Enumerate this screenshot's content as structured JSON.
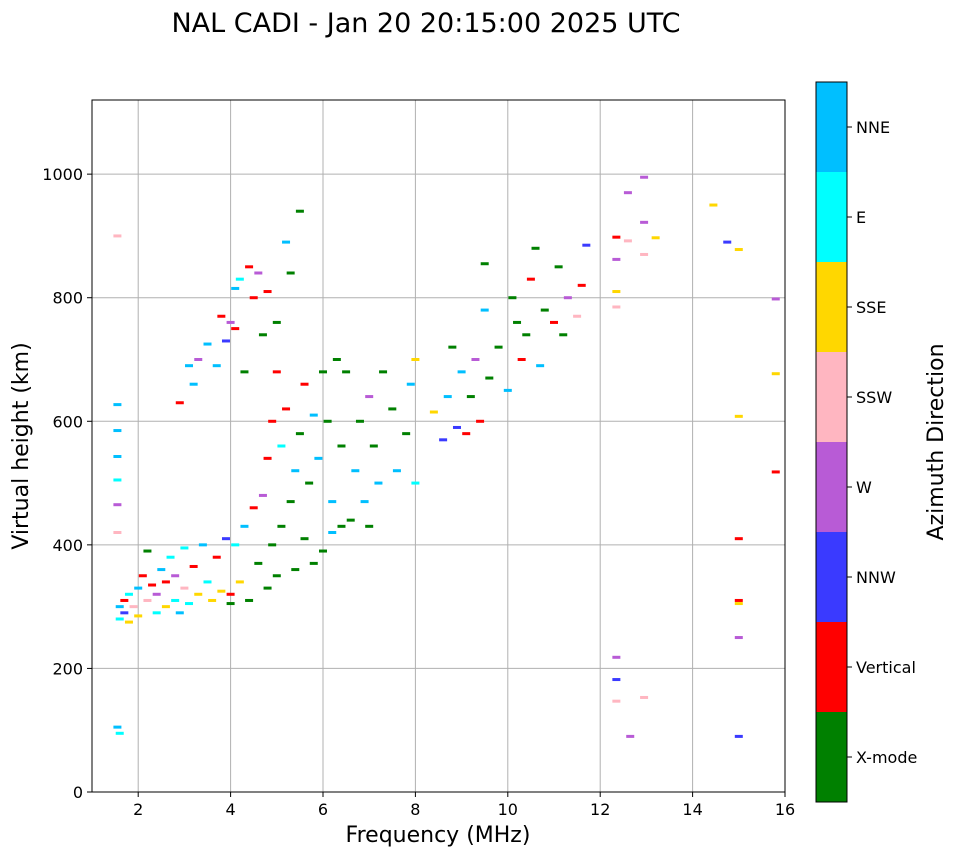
{
  "chart_data": {
    "type": "scatter",
    "title": "NAL CADI - Jan 20 20:15:00 2025 UTC",
    "xlabel": "Frequency (MHz)",
    "ylabel": "Virtual height (km)",
    "xlim": [
      1,
      16
    ],
    "ylim": [
      0,
      1120
    ],
    "xticks": [
      2,
      4,
      6,
      8,
      10,
      12,
      14,
      16
    ],
    "yticks": [
      0,
      200,
      400,
      600,
      800,
      1000
    ],
    "grid": true,
    "colorbar": {
      "title": "Azimuth Direction",
      "categories": [
        {
          "name": "X-mode",
          "color": "#008000"
        },
        {
          "name": "Vertical",
          "color": "#ff0000"
        },
        {
          "name": "NNW",
          "color": "#3a3aff"
        },
        {
          "name": "W",
          "color": "#b85bd6"
        },
        {
          "name": "SSW",
          "color": "#ffb6c1"
        },
        {
          "name": "SSE",
          "color": "#ffd700"
        },
        {
          "name": "E",
          "color": "#00ffff"
        },
        {
          "name": "NNE",
          "color": "#00bfff"
        }
      ]
    },
    "points": [
      {
        "f": 1.55,
        "h": 900,
        "c": "SSW"
      },
      {
        "f": 1.55,
        "h": 627,
        "c": "NNE"
      },
      {
        "f": 1.55,
        "h": 585,
        "c": "NNE"
      },
      {
        "f": 1.55,
        "h": 543,
        "c": "NNE"
      },
      {
        "f": 1.55,
        "h": 505,
        "c": "E"
      },
      {
        "f": 1.55,
        "h": 465,
        "c": "W"
      },
      {
        "f": 1.55,
        "h": 420,
        "c": "SSW"
      },
      {
        "f": 1.55,
        "h": 105,
        "c": "NNE"
      },
      {
        "f": 1.6,
        "h": 95,
        "c": "E"
      },
      {
        "f": 1.6,
        "h": 300,
        "c": "NNE"
      },
      {
        "f": 1.6,
        "h": 280,
        "c": "E"
      },
      {
        "f": 1.7,
        "h": 310,
        "c": "Vertical"
      },
      {
        "f": 1.7,
        "h": 290,
        "c": "NNW"
      },
      {
        "f": 1.8,
        "h": 275,
        "c": "SSE"
      },
      {
        "f": 1.8,
        "h": 320,
        "c": "E"
      },
      {
        "f": 1.9,
        "h": 300,
        "c": "SSW"
      },
      {
        "f": 2.0,
        "h": 285,
        "c": "SSE"
      },
      {
        "f": 2.0,
        "h": 330,
        "c": "NNE"
      },
      {
        "f": 2.1,
        "h": 350,
        "c": "Vertical"
      },
      {
        "f": 2.2,
        "h": 310,
        "c": "SSW"
      },
      {
        "f": 2.2,
        "h": 390,
        "c": "X-mode"
      },
      {
        "f": 2.3,
        "h": 335,
        "c": "Vertical"
      },
      {
        "f": 2.4,
        "h": 320,
        "c": "W"
      },
      {
        "f": 2.4,
        "h": 290,
        "c": "E"
      },
      {
        "f": 2.5,
        "h": 360,
        "c": "NNE"
      },
      {
        "f": 2.6,
        "h": 300,
        "c": "SSE"
      },
      {
        "f": 2.6,
        "h": 340,
        "c": "Vertical"
      },
      {
        "f": 2.7,
        "h": 380,
        "c": "E"
      },
      {
        "f": 2.8,
        "h": 310,
        "c": "E"
      },
      {
        "f": 2.8,
        "h": 350,
        "c": "W"
      },
      {
        "f": 2.9,
        "h": 630,
        "c": "Vertical"
      },
      {
        "f": 2.9,
        "h": 290,
        "c": "NNE"
      },
      {
        "f": 3.0,
        "h": 395,
        "c": "E"
      },
      {
        "f": 3.0,
        "h": 330,
        "c": "SSW"
      },
      {
        "f": 3.1,
        "h": 690,
        "c": "NNE"
      },
      {
        "f": 3.1,
        "h": 305,
        "c": "E"
      },
      {
        "f": 3.2,
        "h": 365,
        "c": "Vertical"
      },
      {
        "f": 3.2,
        "h": 660,
        "c": "NNE"
      },
      {
        "f": 3.3,
        "h": 700,
        "c": "W"
      },
      {
        "f": 3.3,
        "h": 320,
        "c": "SSE"
      },
      {
        "f": 3.4,
        "h": 400,
        "c": "NNE"
      },
      {
        "f": 3.5,
        "h": 725,
        "c": "NNE"
      },
      {
        "f": 3.5,
        "h": 340,
        "c": "E"
      },
      {
        "f": 3.6,
        "h": 310,
        "c": "SSE"
      },
      {
        "f": 3.7,
        "h": 690,
        "c": "NNE"
      },
      {
        "f": 3.7,
        "h": 380,
        "c": "Vertical"
      },
      {
        "f": 3.8,
        "h": 770,
        "c": "Vertical"
      },
      {
        "f": 3.8,
        "h": 325,
        "c": "SSE"
      },
      {
        "f": 3.9,
        "h": 730,
        "c": "NNW"
      },
      {
        "f": 3.9,
        "h": 410,
        "c": "NNW"
      },
      {
        "f": 4.0,
        "h": 760,
        "c": "W"
      },
      {
        "f": 4.0,
        "h": 320,
        "c": "Vertical"
      },
      {
        "f": 4.0,
        "h": 305,
        "c": "X-mode"
      },
      {
        "f": 4.1,
        "h": 815,
        "c": "NNE"
      },
      {
        "f": 4.1,
        "h": 750,
        "c": "Vertical"
      },
      {
        "f": 4.1,
        "h": 400,
        "c": "E"
      },
      {
        "f": 4.2,
        "h": 830,
        "c": "E"
      },
      {
        "f": 4.2,
        "h": 340,
        "c": "SSE"
      },
      {
        "f": 4.3,
        "h": 680,
        "c": "X-mode"
      },
      {
        "f": 4.3,
        "h": 430,
        "c": "NNE"
      },
      {
        "f": 4.4,
        "h": 850,
        "c": "Vertical"
      },
      {
        "f": 4.4,
        "h": 310,
        "c": "X-mode"
      },
      {
        "f": 4.5,
        "h": 800,
        "c": "Vertical"
      },
      {
        "f": 4.5,
        "h": 460,
        "c": "Vertical"
      },
      {
        "f": 4.6,
        "h": 840,
        "c": "W"
      },
      {
        "f": 4.6,
        "h": 370,
        "c": "X-mode"
      },
      {
        "f": 4.7,
        "h": 740,
        "c": "X-mode"
      },
      {
        "f": 4.7,
        "h": 480,
        "c": "W"
      },
      {
        "f": 4.8,
        "h": 810,
        "c": "Vertical"
      },
      {
        "f": 4.8,
        "h": 540,
        "c": "Vertical"
      },
      {
        "f": 4.8,
        "h": 330,
        "c": "X-mode"
      },
      {
        "f": 4.9,
        "h": 600,
        "c": "Vertical"
      },
      {
        "f": 4.9,
        "h": 400,
        "c": "X-mode"
      },
      {
        "f": 5.0,
        "h": 680,
        "c": "Vertical"
      },
      {
        "f": 5.0,
        "h": 760,
        "c": "X-mode"
      },
      {
        "f": 5.0,
        "h": 350,
        "c": "X-mode"
      },
      {
        "f": 5.1,
        "h": 560,
        "c": "E"
      },
      {
        "f": 5.1,
        "h": 430,
        "c": "X-mode"
      },
      {
        "f": 5.2,
        "h": 620,
        "c": "Vertical"
      },
      {
        "f": 5.2,
        "h": 890,
        "c": "NNE"
      },
      {
        "f": 5.3,
        "h": 470,
        "c": "X-mode"
      },
      {
        "f": 5.3,
        "h": 840,
        "c": "X-mode"
      },
      {
        "f": 5.4,
        "h": 520,
        "c": "NNE"
      },
      {
        "f": 5.4,
        "h": 360,
        "c": "X-mode"
      },
      {
        "f": 5.5,
        "h": 940,
        "c": "X-mode"
      },
      {
        "f": 5.5,
        "h": 580,
        "c": "X-mode"
      },
      {
        "f": 5.6,
        "h": 660,
        "c": "Vertical"
      },
      {
        "f": 5.6,
        "h": 410,
        "c": "X-mode"
      },
      {
        "f": 5.7,
        "h": 500,
        "c": "X-mode"
      },
      {
        "f": 5.8,
        "h": 610,
        "c": "NNE"
      },
      {
        "f": 5.8,
        "h": 370,
        "c": "X-mode"
      },
      {
        "f": 5.9,
        "h": 540,
        "c": "NNE"
      },
      {
        "f": 6.0,
        "h": 680,
        "c": "X-mode"
      },
      {
        "f": 6.0,
        "h": 390,
        "c": "X-mode"
      },
      {
        "f": 6.1,
        "h": 600,
        "c": "X-mode"
      },
      {
        "f": 6.2,
        "h": 420,
        "c": "NNE"
      },
      {
        "f": 6.2,
        "h": 470,
        "c": "NNE"
      },
      {
        "f": 6.3,
        "h": 700,
        "c": "X-mode"
      },
      {
        "f": 6.4,
        "h": 430,
        "c": "X-mode"
      },
      {
        "f": 6.4,
        "h": 560,
        "c": "X-mode"
      },
      {
        "f": 6.5,
        "h": 680,
        "c": "X-mode"
      },
      {
        "f": 6.6,
        "h": 440,
        "c": "X-mode"
      },
      {
        "f": 6.7,
        "h": 520,
        "c": "NNE"
      },
      {
        "f": 6.8,
        "h": 600,
        "c": "X-mode"
      },
      {
        "f": 6.9,
        "h": 470,
        "c": "NNE"
      },
      {
        "f": 7.0,
        "h": 640,
        "c": "W"
      },
      {
        "f": 7.0,
        "h": 430,
        "c": "X-mode"
      },
      {
        "f": 7.1,
        "h": 560,
        "c": "X-mode"
      },
      {
        "f": 7.2,
        "h": 500,
        "c": "NNE"
      },
      {
        "f": 7.3,
        "h": 680,
        "c": "X-mode"
      },
      {
        "f": 7.5,
        "h": 620,
        "c": "X-mode"
      },
      {
        "f": 7.6,
        "h": 520,
        "c": "NNE"
      },
      {
        "f": 7.8,
        "h": 580,
        "c": "X-mode"
      },
      {
        "f": 7.9,
        "h": 660,
        "c": "NNE"
      },
      {
        "f": 8.0,
        "h": 700,
        "c": "SSE"
      },
      {
        "f": 8.0,
        "h": 500,
        "c": "E"
      },
      {
        "f": 8.4,
        "h": 615,
        "c": "SSE"
      },
      {
        "f": 8.6,
        "h": 570,
        "c": "NNW"
      },
      {
        "f": 8.7,
        "h": 640,
        "c": "NNE"
      },
      {
        "f": 8.8,
        "h": 720,
        "c": "X-mode"
      },
      {
        "f": 8.9,
        "h": 590,
        "c": "NNW"
      },
      {
        "f": 9.0,
        "h": 680,
        "c": "NNE"
      },
      {
        "f": 9.1,
        "h": 580,
        "c": "Vertical"
      },
      {
        "f": 9.2,
        "h": 640,
        "c": "X-mode"
      },
      {
        "f": 9.3,
        "h": 700,
        "c": "W"
      },
      {
        "f": 9.4,
        "h": 600,
        "c": "Vertical"
      },
      {
        "f": 9.5,
        "h": 780,
        "c": "NNE"
      },
      {
        "f": 9.5,
        "h": 855,
        "c": "X-mode"
      },
      {
        "f": 9.6,
        "h": 670,
        "c": "X-mode"
      },
      {
        "f": 9.8,
        "h": 720,
        "c": "X-mode"
      },
      {
        "f": 10.0,
        "h": 650,
        "c": "NNE"
      },
      {
        "f": 10.1,
        "h": 800,
        "c": "X-mode"
      },
      {
        "f": 10.2,
        "h": 760,
        "c": "X-mode"
      },
      {
        "f": 10.3,
        "h": 700,
        "c": "Vertical"
      },
      {
        "f": 10.4,
        "h": 740,
        "c": "X-mode"
      },
      {
        "f": 10.5,
        "h": 830,
        "c": "Vertical"
      },
      {
        "f": 10.6,
        "h": 880,
        "c": "X-mode"
      },
      {
        "f": 10.7,
        "h": 690,
        "c": "NNE"
      },
      {
        "f": 10.8,
        "h": 780,
        "c": "X-mode"
      },
      {
        "f": 11.0,
        "h": 760,
        "c": "Vertical"
      },
      {
        "f": 11.1,
        "h": 850,
        "c": "X-mode"
      },
      {
        "f": 11.2,
        "h": 740,
        "c": "X-mode"
      },
      {
        "f": 11.3,
        "h": 800,
        "c": "W"
      },
      {
        "f": 11.5,
        "h": 770,
        "c": "SSW"
      },
      {
        "f": 11.6,
        "h": 820,
        "c": "Vertical"
      },
      {
        "f": 11.7,
        "h": 885,
        "c": "NNW"
      },
      {
        "f": 12.35,
        "h": 898,
        "c": "Vertical"
      },
      {
        "f": 12.35,
        "h": 862,
        "c": "W"
      },
      {
        "f": 12.35,
        "h": 810,
        "c": "SSE"
      },
      {
        "f": 12.35,
        "h": 785,
        "c": "SSW"
      },
      {
        "f": 12.6,
        "h": 970,
        "c": "W"
      },
      {
        "f": 12.6,
        "h": 892,
        "c": "SSW"
      },
      {
        "f": 12.95,
        "h": 995,
        "c": "W"
      },
      {
        "f": 12.95,
        "h": 922,
        "c": "W"
      },
      {
        "f": 12.95,
        "h": 870,
        "c": "SSW"
      },
      {
        "f": 13.2,
        "h": 897,
        "c": "SSE"
      },
      {
        "f": 14.45,
        "h": 950,
        "c": "SSE"
      },
      {
        "f": 14.75,
        "h": 890,
        "c": "NNW"
      },
      {
        "f": 15.0,
        "h": 878,
        "c": "SSE"
      },
      {
        "f": 15.0,
        "h": 608,
        "c": "SSE"
      },
      {
        "f": 15.0,
        "h": 410,
        "c": "Vertical"
      },
      {
        "f": 15.0,
        "h": 310,
        "c": "Vertical"
      },
      {
        "f": 15.0,
        "h": 305,
        "c": "SSE"
      },
      {
        "f": 15.0,
        "h": 250,
        "c": "W"
      },
      {
        "f": 15.0,
        "h": 90,
        "c": "NNW"
      },
      {
        "f": 15.8,
        "h": 798,
        "c": "W"
      },
      {
        "f": 15.8,
        "h": 677,
        "c": "SSE"
      },
      {
        "f": 15.8,
        "h": 518,
        "c": "Vertical"
      },
      {
        "f": 12.35,
        "h": 218,
        "c": "W"
      },
      {
        "f": 12.35,
        "h": 182,
        "c": "NNW"
      },
      {
        "f": 12.35,
        "h": 147,
        "c": "SSW"
      },
      {
        "f": 12.65,
        "h": 90,
        "c": "W"
      },
      {
        "f": 12.95,
        "h": 153,
        "c": "SSW"
      }
    ]
  }
}
